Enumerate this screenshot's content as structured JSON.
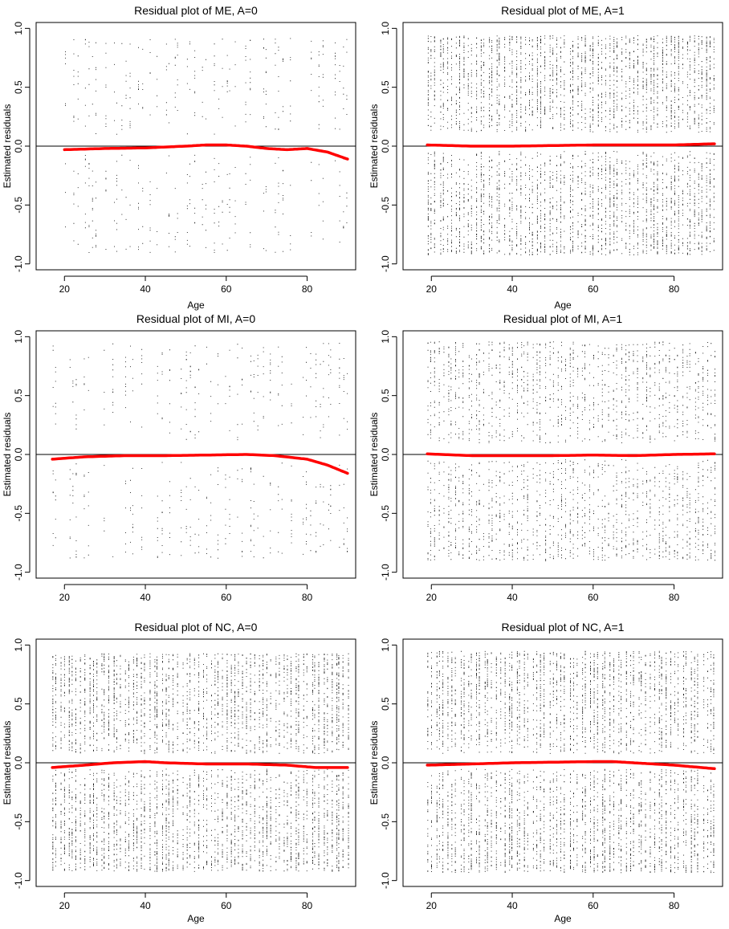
{
  "figure": {
    "background": "#ffffff",
    "point_color": "#000000",
    "smooth_color": "#ff0000",
    "zero_line_color": "#000000"
  },
  "chart_data": [
    {
      "type": "scatter",
      "title": "Residual plot of ME, A=0",
      "xlabel": "Age",
      "ylabel": "Estimated residuals",
      "xticks": [
        20,
        40,
        60,
        80
      ],
      "yticks": [
        -1.0,
        -0.5,
        0.0,
        0.5,
        1.0
      ],
      "ytick_labels": [
        "-1.0",
        "-0.5",
        "0.0",
        "0.5",
        "1.0"
      ],
      "xlim": [
        13,
        92
      ],
      "ylim": [
        -1.05,
        1.05
      ],
      "reference_line_y": 0.0,
      "grid": false,
      "point_summary": {
        "x_range": [
          20,
          90
        ],
        "pos_range": [
          0.1,
          0.92
        ],
        "neg_range": [
          -0.9,
          -0.07
        ],
        "density": "sparse"
      },
      "smooth": {
        "x": [
          20,
          30,
          40,
          50,
          55,
          60,
          65,
          70,
          75,
          80,
          85,
          90
        ],
        "y": [
          -0.03,
          -0.02,
          -0.015,
          0.0,
          0.01,
          0.01,
          0.0,
          -0.02,
          -0.03,
          -0.02,
          -0.05,
          -0.11
        ]
      }
    },
    {
      "type": "scatter",
      "title": "Residual plot of ME, A=1",
      "xlabel": "Age",
      "ylabel": "Estimated residuals",
      "xticks": [
        20,
        40,
        60,
        80
      ],
      "yticks": [
        -1.0,
        -0.5,
        0.0,
        0.5,
        1.0
      ],
      "ytick_labels": [
        "-1.0",
        "-0.5",
        "0.0",
        "0.5",
        "1.0"
      ],
      "xlim": [
        13,
        92
      ],
      "ylim": [
        -1.05,
        1.05
      ],
      "reference_line_y": 0.0,
      "grid": false,
      "point_summary": {
        "x_range": [
          19,
          90
        ],
        "pos_range": [
          0.12,
          0.94
        ],
        "neg_range": [
          -0.92,
          -0.04
        ],
        "density": "dense"
      },
      "smooth": {
        "x": [
          19,
          30,
          40,
          50,
          60,
          70,
          80,
          90
        ],
        "y": [
          0.01,
          0.0,
          0.0,
          0.005,
          0.01,
          0.01,
          0.01,
          0.02
        ]
      }
    },
    {
      "type": "scatter",
      "title": "Residual plot of MI, A=0",
      "xlabel": "",
      "ylabel": "Estimated residuals",
      "xticks": [
        20,
        40,
        60,
        80
      ],
      "yticks": [
        -1.0,
        -0.5,
        0.0,
        0.5,
        1.0
      ],
      "ytick_labels": [
        "-1.0",
        "-0.5",
        "0.0",
        "0.5",
        "1.0"
      ],
      "xlim": [
        13,
        92
      ],
      "ylim": [
        -1.05,
        1.05
      ],
      "reference_line_y": 0.0,
      "grid": false,
      "point_summary": {
        "x_range": [
          17,
          90
        ],
        "pos_range": [
          0.12,
          0.95
        ],
        "neg_range": [
          -0.88,
          -0.04
        ],
        "density": "sparse"
      },
      "smooth": {
        "x": [
          17,
          25,
          35,
          45,
          55,
          65,
          72,
          80,
          85,
          90
        ],
        "y": [
          -0.04,
          -0.02,
          -0.01,
          -0.01,
          -0.005,
          0.0,
          -0.01,
          -0.04,
          -0.09,
          -0.16
        ]
      }
    },
    {
      "type": "scatter",
      "title": "Residual plot of MI, A=1",
      "xlabel": "",
      "ylabel": "Estimated residuals",
      "xticks": [
        20,
        40,
        60,
        80
      ],
      "yticks": [
        -1.0,
        -0.5,
        0.0,
        0.5,
        1.0
      ],
      "ytick_labels": [
        "-1.0",
        "-0.5",
        "0.0",
        "0.5",
        "1.0"
      ],
      "xlim": [
        13,
        92
      ],
      "ylim": [
        -1.05,
        1.05
      ],
      "reference_line_y": 0.0,
      "grid": false,
      "point_summary": {
        "x_range": [
          19,
          90
        ],
        "pos_range": [
          0.1,
          0.96
        ],
        "neg_range": [
          -0.9,
          -0.04
        ],
        "density": "medium"
      },
      "smooth": {
        "x": [
          19,
          30,
          40,
          50,
          60,
          70,
          80,
          90
        ],
        "y": [
          0.005,
          -0.01,
          -0.01,
          -0.01,
          -0.005,
          -0.01,
          0.0,
          0.005
        ]
      }
    },
    {
      "type": "scatter",
      "title": "Residual plot of NC, A=0",
      "xlabel": "Age",
      "ylabel": "Estimated residuals",
      "xticks": [
        20,
        40,
        60,
        80
      ],
      "yticks": [
        -1.0,
        -0.5,
        0.0,
        0.5,
        1.0
      ],
      "ytick_labels": [
        "-1.0",
        "-0.5",
        "0.0",
        "0.5",
        "1.0"
      ],
      "xlim": [
        13,
        92
      ],
      "ylim": [
        -1.05,
        1.05
      ],
      "reference_line_y": 0.0,
      "grid": false,
      "point_summary": {
        "x_range": [
          17,
          90
        ],
        "pos_range": [
          0.08,
          0.93
        ],
        "neg_range": [
          -0.92,
          -0.05
        ],
        "density": "dense"
      },
      "smooth": {
        "x": [
          17,
          25,
          32,
          40,
          45,
          55,
          65,
          75,
          82,
          90
        ],
        "y": [
          -0.04,
          -0.02,
          0.0,
          0.01,
          0.0,
          -0.01,
          -0.01,
          -0.02,
          -0.04,
          -0.04
        ]
      }
    },
    {
      "type": "scatter",
      "title": "Residual plot of NC, A=1",
      "xlabel": "Age",
      "ylabel": "Estimated residuals",
      "xticks": [
        20,
        40,
        60,
        80
      ],
      "yticks": [
        -1.0,
        -0.5,
        0.0,
        0.5,
        1.0
      ],
      "ytick_labels": [
        "-1.0",
        "-0.5",
        "0.0",
        "0.5",
        "1.0"
      ],
      "xlim": [
        13,
        92
      ],
      "ylim": [
        -1.05,
        1.05
      ],
      "reference_line_y": 0.0,
      "grid": false,
      "point_summary": {
        "x_range": [
          19,
          90
        ],
        "pos_range": [
          0.08,
          0.95
        ],
        "neg_range": [
          -0.93,
          -0.05
        ],
        "density": "dense"
      },
      "smooth": {
        "x": [
          19,
          30,
          40,
          50,
          60,
          65,
          70,
          80,
          90
        ],
        "y": [
          -0.02,
          -0.01,
          0.0,
          0.005,
          0.01,
          0.01,
          0.0,
          -0.02,
          -0.05
        ]
      }
    }
  ]
}
